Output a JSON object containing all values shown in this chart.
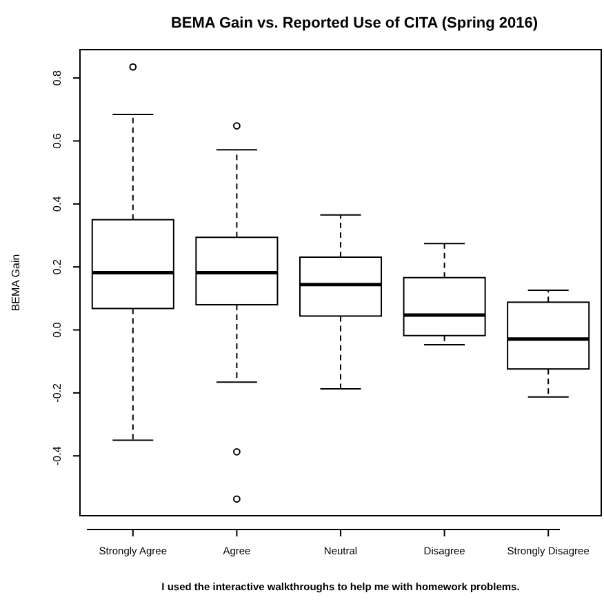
{
  "chart_data": {
    "type": "box",
    "title": "BEMA Gain vs. Reported Use of CITA (Spring 2016)",
    "xlabel": "I used the interactive walkthroughs to help me with homework problems.",
    "ylabel": "BEMA Gain",
    "categories": [
      "Strongly Agree",
      "Agree",
      "Neutral",
      "Disagree",
      "Strongly Disagree"
    ],
    "boxes": [
      {
        "low": -0.35,
        "q1": 0.068,
        "median": 0.182,
        "q3": 0.35,
        "high": 0.684,
        "outliers": [
          0.835
        ]
      },
      {
        "low": -0.166,
        "q1": 0.08,
        "median": 0.182,
        "q3": 0.294,
        "high": 0.572,
        "outliers": [
          0.648,
          -0.387,
          -0.537
        ]
      },
      {
        "low": -0.187,
        "q1": 0.044,
        "median": 0.144,
        "q3": 0.231,
        "high": 0.365
      },
      {
        "low": -0.047,
        "q1": -0.018,
        "median": 0.047,
        "q3": 0.166,
        "high": 0.274
      },
      {
        "low": -0.213,
        "q1": -0.124,
        "median": -0.029,
        "q3": 0.088,
        "high": 0.126
      }
    ],
    "ylim": [
      -0.59,
      0.89
    ],
    "yticks": [
      -0.4,
      -0.2,
      {
        "value": 0,
        "label": "0.0"
      },
      0.2,
      0.4,
      0.6,
      0.8
    ]
  }
}
